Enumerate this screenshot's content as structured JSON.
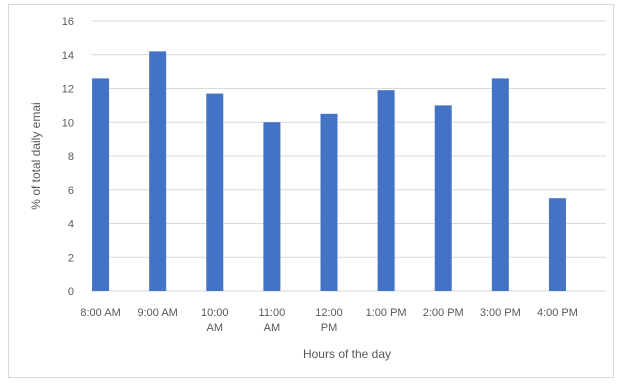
{
  "chart_data": {
    "type": "bar",
    "title": "",
    "xlabel": "Hours of the day",
    "ylabel": "% of total daily emai",
    "categories": [
      [
        "8:00 AM"
      ],
      [
        "9:00 AM"
      ],
      [
        "10:00",
        "AM"
      ],
      [
        "11:00",
        "AM"
      ],
      [
        "12:00",
        "PM"
      ],
      [
        "1:00 PM"
      ],
      [
        "2:00 PM"
      ],
      [
        "3:00 PM"
      ],
      [
        "4:00 PM"
      ]
    ],
    "values": [
      12.6,
      14.2,
      11.7,
      10.0,
      10.5,
      11.9,
      11.0,
      12.6,
      5.5
    ],
    "ylim": [
      0,
      16
    ],
    "yticks": [
      0,
      2,
      4,
      6,
      8,
      10,
      12,
      14,
      16
    ],
    "grid": true,
    "legend": "none",
    "colors": {
      "bar": "#4472c4",
      "grid": "#d9d9d9",
      "text": "#595959"
    }
  }
}
